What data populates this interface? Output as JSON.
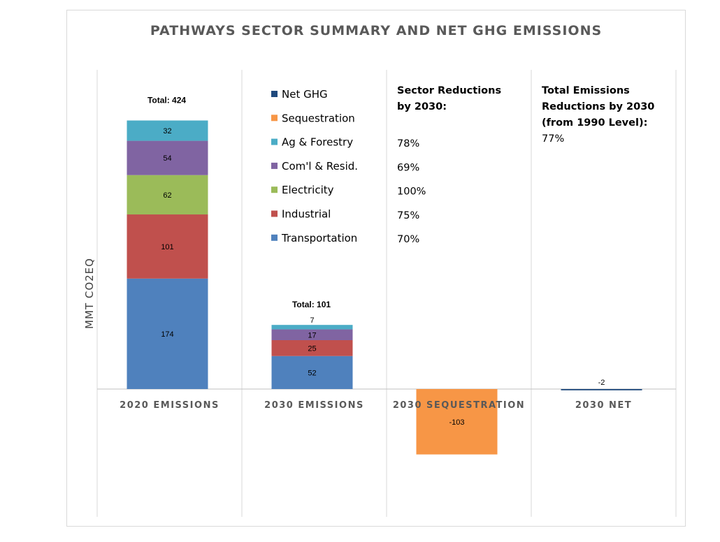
{
  "chart_data": {
    "type": "bar",
    "stacked": true,
    "title": "PATHWAYS SECTOR SUMMARY AND NET GHG EMISSIONS",
    "ylabel": "MMT CO2EQ",
    "ylim": [
      -180,
      600
    ],
    "categories": [
      "2020 EMISSIONS",
      "2030 EMISSIONS",
      "2030 SEQUESTRATION",
      "2030 NET"
    ],
    "series": [
      {
        "name": "Transportation",
        "color": "#4f81bd",
        "values": [
          174,
          52,
          null,
          null
        ]
      },
      {
        "name": "Industrial",
        "color": "#c0504d",
        "values": [
          101,
          25,
          null,
          null
        ]
      },
      {
        "name": "Electricity",
        "color": "#9bbb59",
        "values": [
          62,
          null,
          null,
          null
        ]
      },
      {
        "name": "Com'l & Resid.",
        "color": "#8064a2",
        "values": [
          54,
          17,
          null,
          null
        ]
      },
      {
        "name": "Ag & Forestry",
        "color": "#4bacc6",
        "values": [
          32,
          7,
          null,
          null
        ]
      },
      {
        "name": "Sequestration",
        "color": "#f79646",
        "values": [
          null,
          null,
          -103,
          null
        ]
      },
      {
        "name": "Net GHG",
        "color": "#1f497d",
        "values": [
          null,
          null,
          null,
          -2
        ]
      }
    ],
    "data_labels": [
      [
        "174",
        "101",
        "62",
        "54",
        "32"
      ],
      [
        "52",
        "25",
        "17",
        "7"
      ],
      [
        "-103"
      ],
      [
        "-2"
      ]
    ],
    "totals": [
      {
        "category": "2020 EMISSIONS",
        "label": "Total: 424"
      },
      {
        "category": "2030 EMISSIONS",
        "label": "Total: 101"
      }
    ],
    "legend_order": [
      "Net GHG",
      "Sequestration",
      "Ag & Forestry",
      "Com'l & Resid.",
      "Electricity",
      "Industrial",
      "Transportation"
    ],
    "legend_position": "top-center",
    "sector_reductions": {
      "heading_lines": [
        "Sector Reductions",
        "by 2030:"
      ],
      "values": [
        "78%",
        "69%",
        "100%",
        "75%",
        "70%"
      ]
    },
    "total_reductions": {
      "heading_lines": [
        "Total Emissions",
        "Reductions by 2030",
        "(from 1990 Level):"
      ],
      "value": "77%"
    },
    "grid": false,
    "colors": {
      "frame": "#d9d9d9",
      "divider": "#d9d9d9",
      "axis": "#bfbfbf",
      "text_gray": "#595959"
    }
  }
}
